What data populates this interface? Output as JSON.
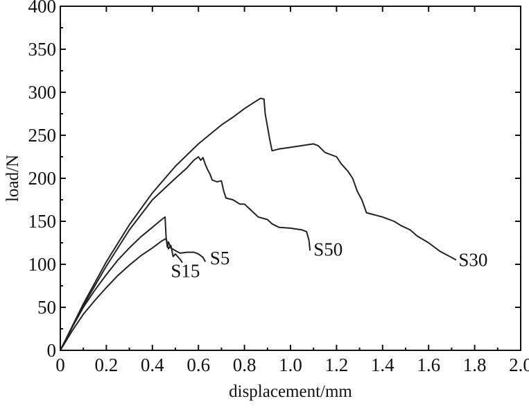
{
  "chart_data": {
    "type": "line",
    "title": "",
    "xlabel": "displacement/mm",
    "ylabel": "load/N",
    "xlim": [
      0,
      2.0
    ],
    "ylim": [
      0,
      400
    ],
    "x_ticks": [
      "0",
      "0.2",
      "0.4",
      "0.6",
      "0.8",
      "1.0",
      "1.2",
      "1.4",
      "1.6",
      "1.8",
      "2.0"
    ],
    "y_ticks": [
      "0",
      "50",
      "100",
      "150",
      "200",
      "250",
      "300",
      "350",
      "400"
    ],
    "grid": false,
    "legend": "none",
    "series": [
      {
        "name": "S5",
        "points": [
          [
            0,
            0
          ],
          [
            0.05,
            22
          ],
          [
            0.1,
            42
          ],
          [
            0.15,
            58
          ],
          [
            0.2,
            73
          ],
          [
            0.25,
            87
          ],
          [
            0.3,
            99
          ],
          [
            0.35,
            110
          ],
          [
            0.4,
            119
          ],
          [
            0.44,
            127
          ],
          [
            0.46,
            130
          ],
          [
            0.465,
            120
          ],
          [
            0.47,
            126
          ],
          [
            0.48,
            119
          ],
          [
            0.5,
            116
          ],
          [
            0.52,
            113
          ],
          [
            0.55,
            114
          ],
          [
            0.58,
            114
          ],
          [
            0.6,
            112
          ],
          [
            0.62,
            108
          ],
          [
            0.63,
            103
          ]
        ]
      },
      {
        "name": "S15",
        "points": [
          [
            0,
            0
          ],
          [
            0.05,
            26
          ],
          [
            0.1,
            50
          ],
          [
            0.15,
            70
          ],
          [
            0.2,
            88
          ],
          [
            0.25,
            105
          ],
          [
            0.3,
            119
          ],
          [
            0.35,
            132
          ],
          [
            0.4,
            143
          ],
          [
            0.44,
            152
          ],
          [
            0.455,
            155
          ],
          [
            0.46,
            130
          ],
          [
            0.47,
            118
          ],
          [
            0.48,
            122
          ],
          [
            0.49,
            109
          ],
          [
            0.5,
            112
          ],
          [
            0.52,
            106
          ],
          [
            0.53,
            102
          ]
        ]
      },
      {
        "name": "S50",
        "points": [
          [
            0,
            0
          ],
          [
            0.1,
            52
          ],
          [
            0.2,
            98
          ],
          [
            0.3,
            140
          ],
          [
            0.4,
            175
          ],
          [
            0.5,
            200
          ],
          [
            0.55,
            212
          ],
          [
            0.57,
            218
          ],
          [
            0.58,
            221
          ],
          [
            0.59,
            223
          ],
          [
            0.6,
            225
          ],
          [
            0.61,
            221
          ],
          [
            0.62,
            224
          ],
          [
            0.63,
            216
          ],
          [
            0.64,
            210
          ],
          [
            0.65,
            205
          ],
          [
            0.66,
            198
          ],
          [
            0.68,
            196
          ],
          [
            0.7,
            197
          ],
          [
            0.71,
            185
          ],
          [
            0.72,
            177
          ],
          [
            0.75,
            175
          ],
          [
            0.78,
            170
          ],
          [
            0.8,
            170
          ],
          [
            0.82,
            165
          ],
          [
            0.84,
            160
          ],
          [
            0.86,
            155
          ],
          [
            0.9,
            152
          ],
          [
            0.92,
            147
          ],
          [
            0.95,
            143
          ],
          [
            1.0,
            142
          ],
          [
            1.05,
            140
          ],
          [
            1.07,
            138
          ],
          [
            1.08,
            128
          ],
          [
            1.085,
            116
          ]
        ]
      },
      {
        "name": "S30",
        "points": [
          [
            0,
            0
          ],
          [
            0.1,
            54
          ],
          [
            0.2,
            103
          ],
          [
            0.3,
            146
          ],
          [
            0.4,
            183
          ],
          [
            0.5,
            214
          ],
          [
            0.6,
            240
          ],
          [
            0.7,
            262
          ],
          [
            0.75,
            271
          ],
          [
            0.8,
            281
          ],
          [
            0.84,
            288
          ],
          [
            0.87,
            293
          ],
          [
            0.885,
            292
          ],
          [
            0.89,
            275
          ],
          [
            0.9,
            260
          ],
          [
            0.91,
            245
          ],
          [
            0.92,
            232
          ],
          [
            0.95,
            234
          ],
          [
            1.0,
            236
          ],
          [
            1.05,
            238
          ],
          [
            1.1,
            240
          ],
          [
            1.12,
            238
          ],
          [
            1.15,
            230
          ],
          [
            1.2,
            225
          ],
          [
            1.22,
            217
          ],
          [
            1.25,
            208
          ],
          [
            1.27,
            200
          ],
          [
            1.29,
            185
          ],
          [
            1.31,
            175
          ],
          [
            1.33,
            160
          ],
          [
            1.4,
            155
          ],
          [
            1.45,
            150
          ],
          [
            1.48,
            145
          ],
          [
            1.52,
            140
          ],
          [
            1.55,
            133
          ],
          [
            1.6,
            125
          ],
          [
            1.65,
            115
          ],
          [
            1.7,
            108
          ],
          [
            1.72,
            105
          ]
        ]
      }
    ],
    "annotations": [
      {
        "text": "S5",
        "x": 0.65,
        "y": 100
      },
      {
        "text": "S15",
        "x": 0.48,
        "y": 85
      },
      {
        "text": "S50",
        "x": 1.1,
        "y": 110
      },
      {
        "text": "S30",
        "x": 1.73,
        "y": 98
      }
    ]
  }
}
